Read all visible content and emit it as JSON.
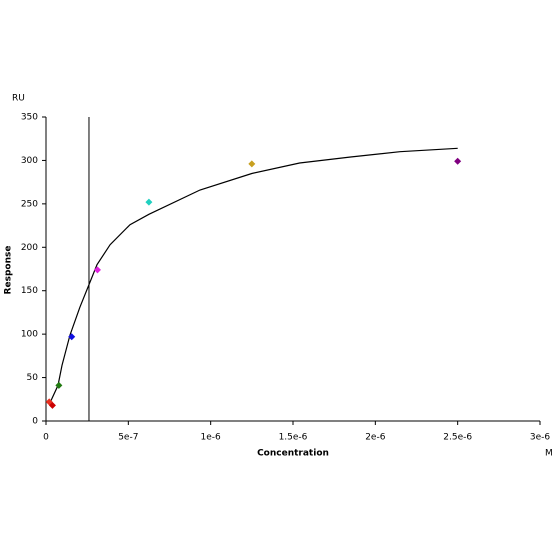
{
  "chart_data": {
    "type": "scatter",
    "y_unit": "RU",
    "x_unit": "M",
    "ylabel": "Response",
    "xlabel": "Concentration",
    "xlim": [
      0,
      3e-06
    ],
    "ylim": [
      0,
      350
    ],
    "xticks": [
      0,
      {
        "value": 5e-07,
        "label": "5e-7"
      },
      {
        "value": 1e-06,
        "label": "1e-6"
      },
      {
        "value": 1.5e-06,
        "label": "1.5e-6"
      },
      {
        "value": 2e-06,
        "label": "2e-6"
      },
      {
        "value": 2.5e-06,
        "label": "2.5e-6"
      },
      {
        "value": 3e-06,
        "label": "3e-6"
      }
    ],
    "yticks": [
      0,
      50,
      100,
      150,
      200,
      250,
      300,
      350
    ],
    "points": {
      "x": [
        1.953e-08,
        3.906e-08,
        7.8125e-08,
        1.5625e-07,
        3.125e-07,
        6.25e-07,
        1.25e-06,
        2.5e-06
      ],
      "values": [
        22,
        18,
        41,
        97,
        174,
        252,
        296,
        299
      ],
      "colors": [
        "#e83020",
        "#cc0000",
        "#207a10",
        "#1010e0",
        "#e020e0",
        "#20d0c0",
        "#c8a020",
        "#800080"
      ]
    },
    "fit": {
      "color": "#000000",
      "x": [
        2.4e-08,
        7.3e-08,
        9.7e-08,
        1.46e-07,
        2.06e-07,
        2.61e-07,
        3.1e-07,
        3.89e-07,
        5.1e-07,
        6.25e-07,
        9.35e-07,
        1.25e-06,
        1.54e-06,
        1.85e-06,
        2.15e-06,
        2.5e-06
      ],
      "values": [
        21,
        41,
        64,
        99,
        131,
        157,
        180,
        203,
        226,
        238,
        266,
        285,
        297,
        304,
        310,
        314
      ]
    },
    "vline": 2.61e-07
  }
}
